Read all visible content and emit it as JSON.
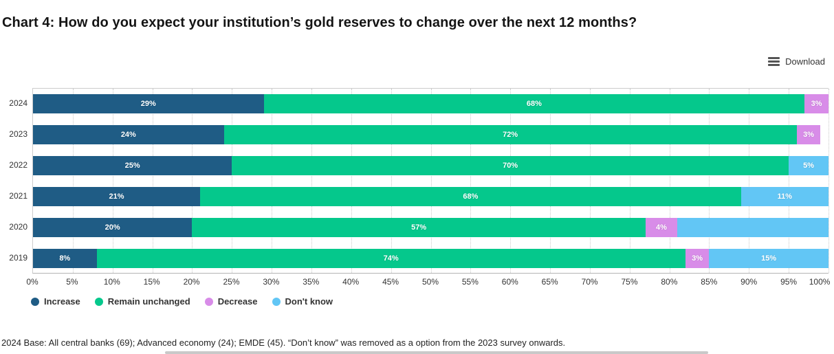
{
  "header": {
    "download_label": "Download"
  },
  "chart_data": {
    "type": "bar",
    "variant": "horizontal-stacked",
    "title": "Chart 4: How do you expect your institution’s gold reserves to change over the next 12 months?",
    "categories": [
      "2024",
      "2023",
      "2022",
      "2021",
      "2020",
      "2019"
    ],
    "series": [
      {
        "name": "Increase",
        "color": "#1F5C85",
        "values": [
          29,
          24,
          25,
          21,
          20,
          8
        ]
      },
      {
        "name": "Remain unchanged",
        "color": "#05C88C",
        "values": [
          68,
          72,
          70,
          68,
          57,
          74
        ]
      },
      {
        "name": "Decrease",
        "color": "#D88CE8",
        "values": [
          3,
          3,
          null,
          null,
          4,
          3
        ]
      },
      {
        "name": "Don't know",
        "color": "#62C6F5",
        "values": [
          null,
          null,
          5,
          11,
          19,
          15
        ]
      }
    ],
    "xticks": [
      "0%",
      "5%",
      "10%",
      "15%",
      "20%",
      "25%",
      "30%",
      "35%",
      "40%",
      "45%",
      "50%",
      "55%",
      "60%",
      "65%",
      "70%",
      "75%",
      "80%",
      "85%",
      "90%",
      "95%",
      "100%"
    ],
    "xlim": [
      0,
      100
    ],
    "grid": "vertical-dotted",
    "grid_color": "#C9C9C9",
    "legend_position": "bottom-left",
    "data_label_format": "{value}%",
    "unlabeled_segments": [
      {
        "category": "2020",
        "series": "Don't know"
      }
    ]
  },
  "footnote": "2024 Base: All central banks (69); Advanced economy (24); EMDE (45). “Don’t know” was removed as a option from the 2023 survey onwards."
}
